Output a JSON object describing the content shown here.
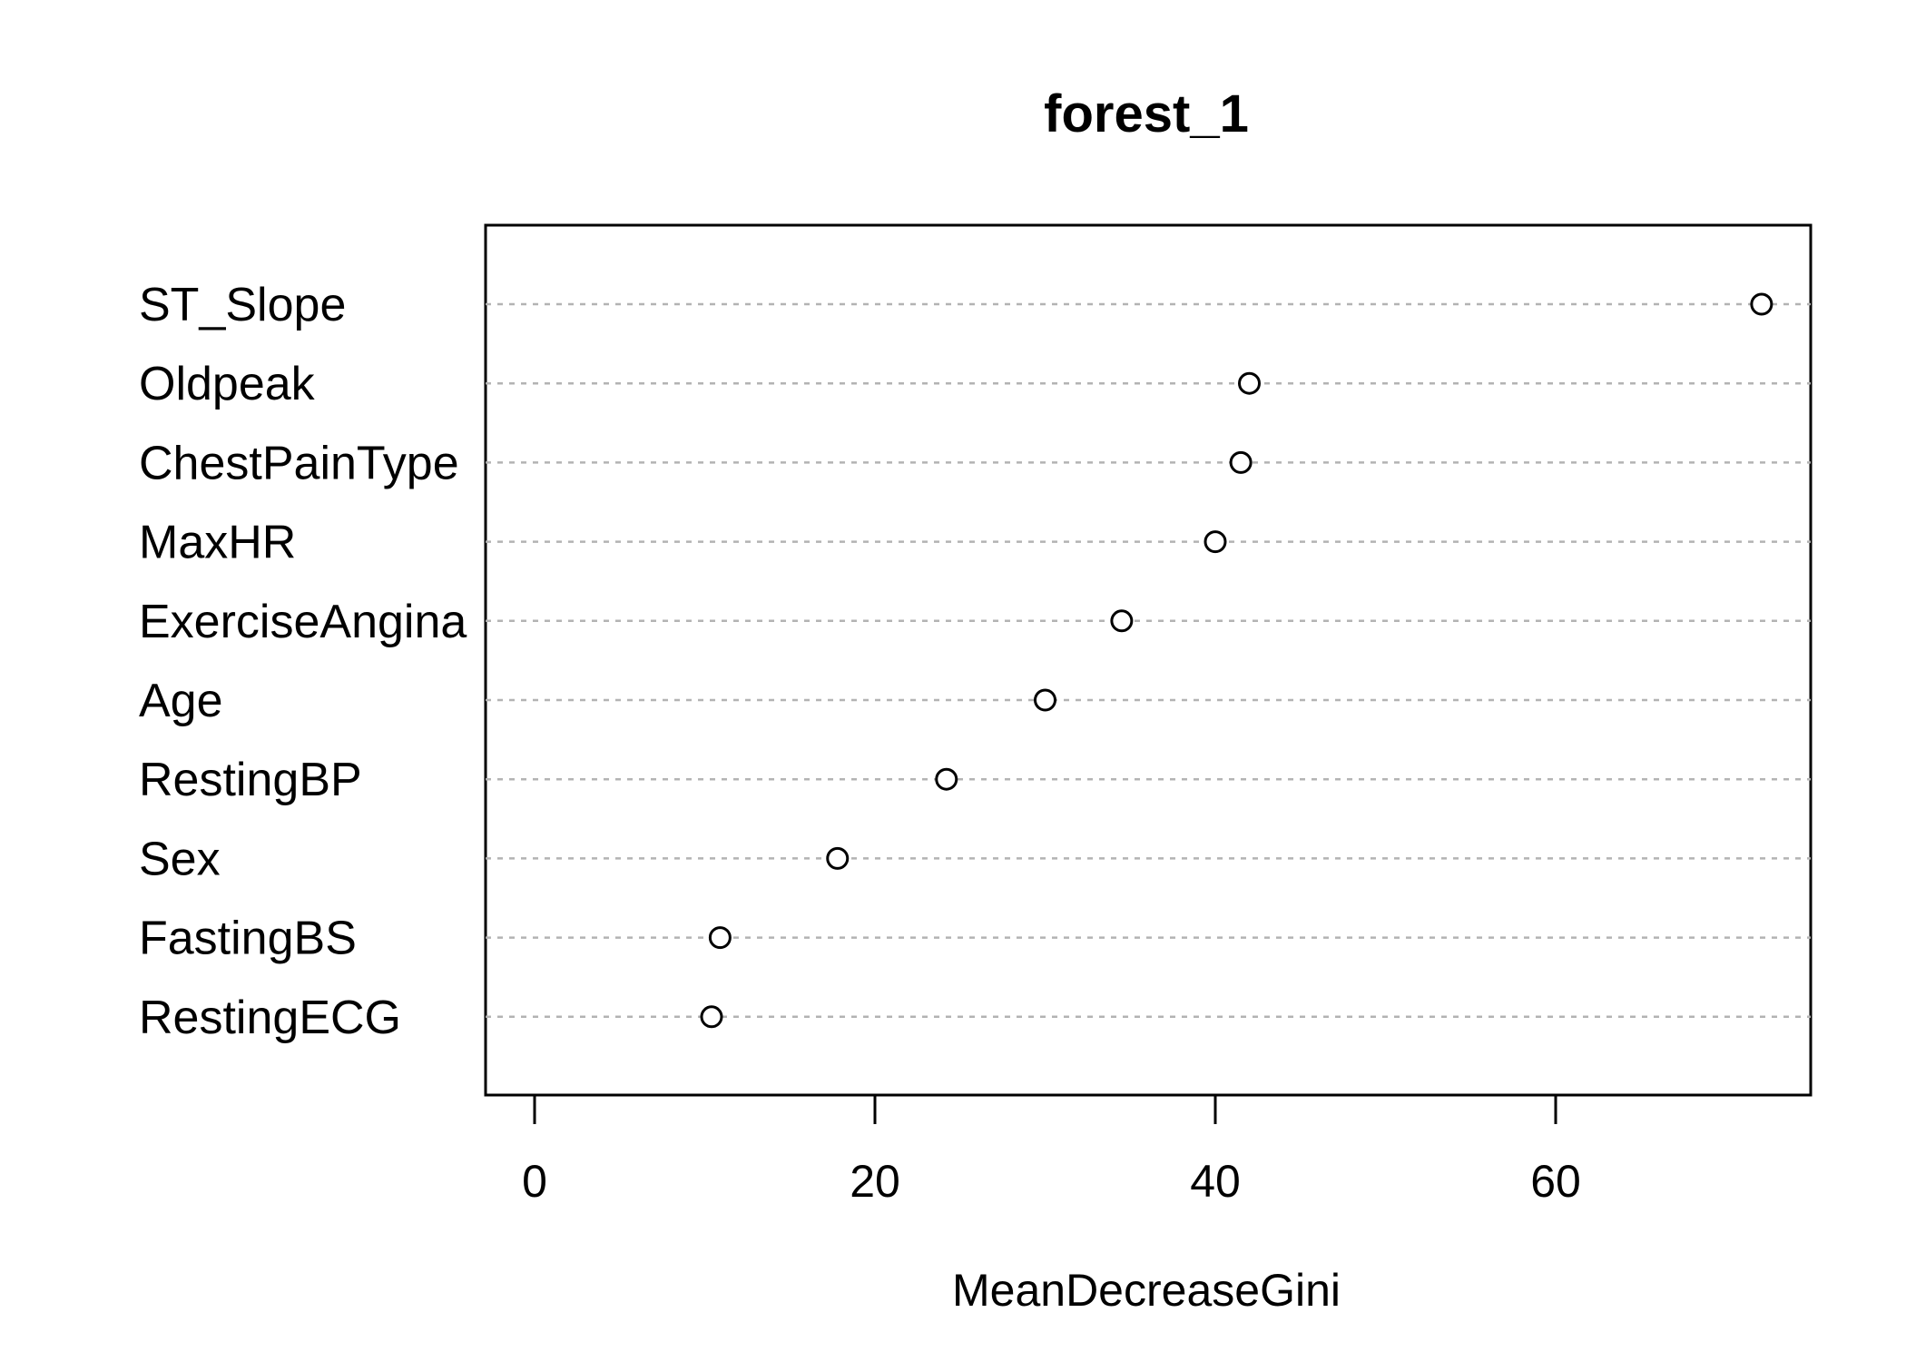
{
  "chart_data": {
    "type": "scatter",
    "title": "forest_1",
    "xlabel": "MeanDecreaseGini",
    "ylabel": "",
    "xlim": [
      -1.5,
      75
    ],
    "xticks": [
      0,
      20,
      40,
      60
    ],
    "grid": "dashed horizontal lines at each variable",
    "points": [
      {
        "label": "ST_Slope",
        "value": 72.1
      },
      {
        "label": "Oldpeak",
        "value": 42.0
      },
      {
        "label": "ChestPainType",
        "value": 41.5
      },
      {
        "label": "MaxHR",
        "value": 40.0
      },
      {
        "label": "ExerciseAngina",
        "value": 34.5
      },
      {
        "label": "Age",
        "value": 30.0
      },
      {
        "label": "RestingBP",
        "value": 24.2
      },
      {
        "label": "Sex",
        "value": 17.8
      },
      {
        "label": "FastingBS",
        "value": 10.9
      },
      {
        "label": "RestingECG",
        "value": 10.4
      }
    ]
  }
}
